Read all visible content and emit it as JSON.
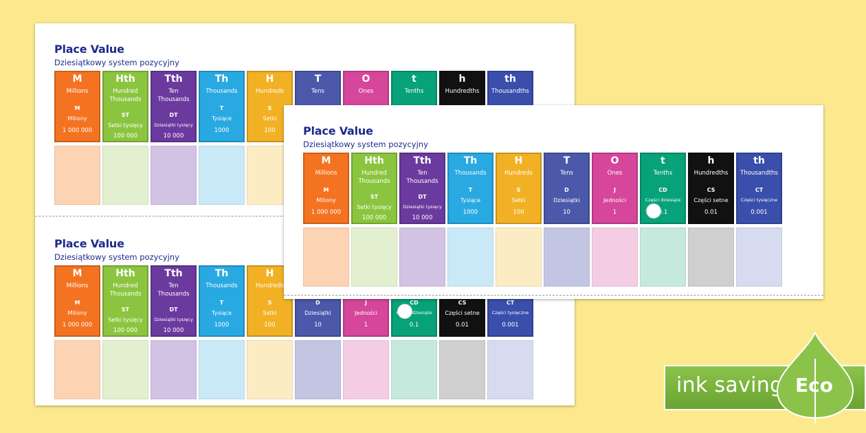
{
  "worksheet": {
    "title": "Place Value",
    "subtitle": "Dziesiątkowy system pozycyjny",
    "columns": [
      {
        "abbr": "M",
        "english": "Millions",
        "pl_abbr": "M",
        "pl_name": "Miliony",
        "value": "1 000 000",
        "color": "#f47321",
        "light": "#fcd3b3"
      },
      {
        "abbr": "Hth",
        "english": "Hundred Thousands",
        "pl_abbr": "ST",
        "pl_name": "Setki tysięcy",
        "value": "100 000",
        "color": "#8bc53f",
        "light": "#e3f0d0"
      },
      {
        "abbr": "Tth",
        "english": "Ten Thousands",
        "pl_abbr": "DT",
        "pl_name": "Dziesiątki tysięcy",
        "value": "10 000",
        "color": "#6b3a9e",
        "light": "#d2c2e3"
      },
      {
        "abbr": "Th",
        "english": "Thousands",
        "pl_abbr": "T",
        "pl_name": "Tysiące",
        "value": "1000",
        "color": "#29a9e1",
        "light": "#c9e9f7"
      },
      {
        "abbr": "H",
        "english": "Hundreds",
        "pl_abbr": "S",
        "pl_name": "Setki",
        "value": "100",
        "color": "#f2b124",
        "light": "#fcecc4"
      },
      {
        "abbr": "T",
        "english": "Tens",
        "pl_abbr": "D",
        "pl_name": "Dziesiątki",
        "value": "10",
        "color": "#4c58a9",
        "light": "#c2c6e3"
      },
      {
        "abbr": "O",
        "english": "Ones",
        "pl_abbr": "J",
        "pl_name": "Jedności",
        "value": "1",
        "color": "#d6469a",
        "light": "#f4cde4"
      },
      {
        "abbr": "t",
        "english": "Tenths",
        "pl_abbr": "CD",
        "pl_name": "Części dziesiąte",
        "value": "0.1",
        "color": "#07a27a",
        "light": "#c5eadd"
      },
      {
        "abbr": "h",
        "english": "Hundredths",
        "pl_abbr": "CS",
        "pl_name": "Części setne",
        "value": "0.01",
        "color": "#111111",
        "light": "#cfcfcf"
      },
      {
        "abbr": "th",
        "english": "Thousandths",
        "pl_abbr": "CT",
        "pl_name": "Części tysięczne",
        "value": "0.001",
        "color": "#3a4fab",
        "light": "#d7dbef"
      }
    ]
  },
  "badge": {
    "label": "ink saving",
    "eco": "Eco",
    "bar_color": "#7cb342",
    "leaf_color": "#8bc34a"
  }
}
